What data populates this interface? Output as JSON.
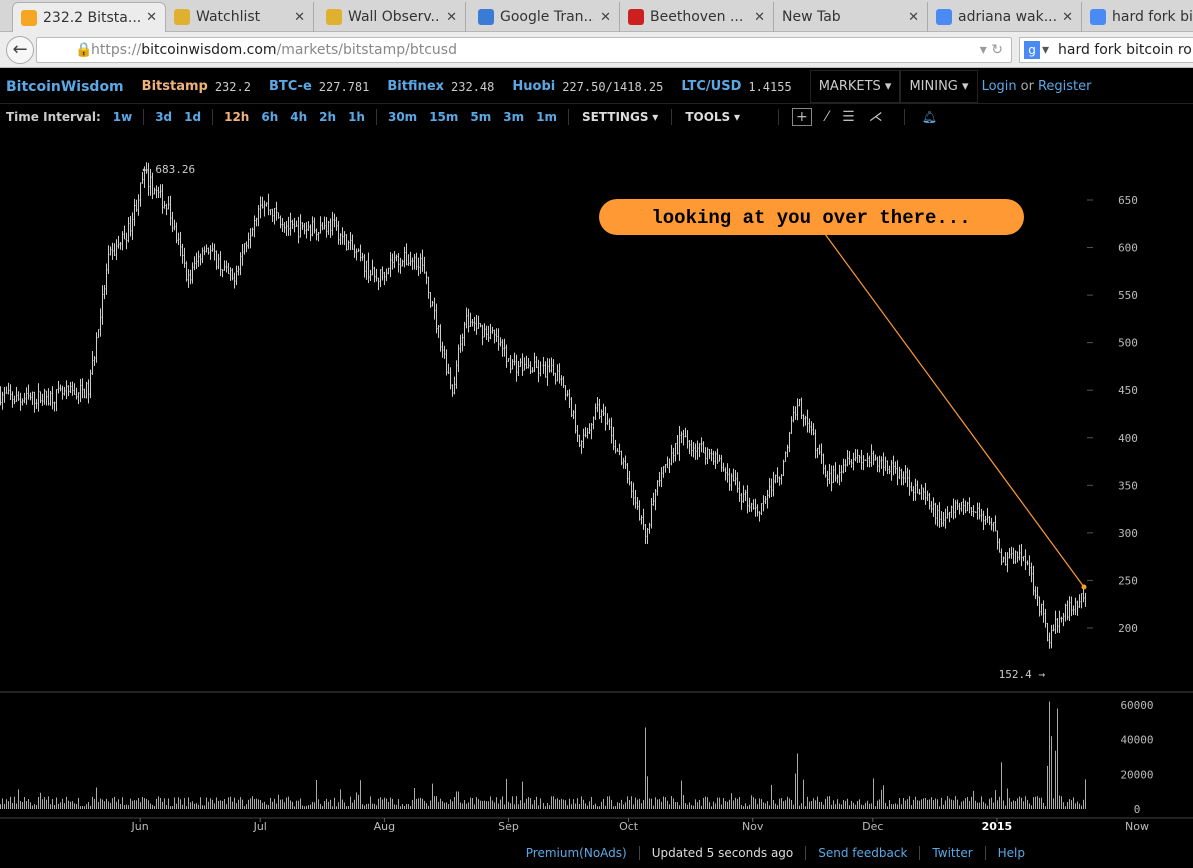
{
  "browser": {
    "tabs": [
      {
        "title": "232.2 Bitsta...",
        "icon": "chart-favicon",
        "color": "#f5a623",
        "active": true
      },
      {
        "title": "Watchlist",
        "icon": "bitcoin-favicon",
        "color": "#e0b030"
      },
      {
        "title": "Wall Observ...",
        "icon": "bitcoin-favicon",
        "color": "#e0b030"
      },
      {
        "title": "Google Tran...",
        "icon": "translate-favicon",
        "color": "#3a7bd5"
      },
      {
        "title": "Beethoven ...",
        "icon": "youtube-favicon",
        "color": "#cc1f1f"
      },
      {
        "title": "New Tab",
        "icon": "",
        "color": ""
      },
      {
        "title": "adriana wak...",
        "icon": "google-favicon",
        "color": "#4a8af4"
      },
      {
        "title": "hard fork bit...",
        "icon": "google-favicon",
        "color": "#4a8af4"
      }
    ],
    "url_prefix": "https://",
    "url_domain": "bitcoinwisdom.com",
    "url_path": "/markets/bitstamp/btcusd",
    "search_value": "hard fork bitcoin rolle"
  },
  "topbar": {
    "brand": "BitcoinWisdom",
    "tickers": [
      {
        "name": "Bitstamp",
        "value": "232.2",
        "highlight": true
      },
      {
        "name": "BTC-e",
        "value": "227.781"
      },
      {
        "name": "Bitfinex",
        "value": "232.48"
      },
      {
        "name": "Huobi",
        "value": "227.50/1418.25"
      },
      {
        "name": "LTC/USD",
        "value": "1.4155"
      }
    ],
    "markets": "MARKETS",
    "mining": "MINING",
    "login": "Login",
    "or": "or",
    "register": "Register"
  },
  "toolbar": {
    "label": "Time Interval:",
    "groups": [
      [
        "1w"
      ],
      [
        "3d",
        "1d"
      ],
      [
        "12h",
        "6h",
        "4h",
        "2h",
        "1h"
      ],
      [
        "30m",
        "15m",
        "5m",
        "3m",
        "1m"
      ]
    ],
    "selected": "12h",
    "settings": "SETTINGS",
    "tools": "TOOLS"
  },
  "chart_data": {
    "type": "candlestick",
    "interval": "12h",
    "price_path": [
      [
        "2014-04-27",
        445
      ],
      [
        "2014-05-02",
        440
      ],
      [
        "2014-05-12",
        445
      ],
      [
        "2014-05-19",
        450
      ],
      [
        "2014-05-21",
        503
      ],
      [
        "2014-05-24",
        587
      ],
      [
        "2014-05-29",
        618
      ],
      [
        "2014-06-02",
        676
      ],
      [
        "2014-06-08",
        640
      ],
      [
        "2014-06-13",
        566
      ],
      [
        "2014-06-17",
        603
      ],
      [
        "2014-06-24",
        566
      ],
      [
        "2014-07-01",
        650
      ],
      [
        "2014-07-09",
        618
      ],
      [
        "2014-07-19",
        624
      ],
      [
        "2014-07-25",
        592
      ],
      [
        "2014-07-30",
        566
      ],
      [
        "2014-08-03",
        587
      ],
      [
        "2014-08-10",
        587
      ],
      [
        "2014-08-15",
        503
      ],
      [
        "2014-08-18",
        450
      ],
      [
        "2014-08-21",
        524
      ],
      [
        "2014-08-28",
        508
      ],
      [
        "2014-09-02",
        477
      ],
      [
        "2014-09-09",
        471
      ],
      [
        "2014-09-14",
        466
      ],
      [
        "2014-09-19",
        392
      ],
      [
        "2014-09-23",
        434
      ],
      [
        "2014-09-30",
        366
      ],
      [
        "2014-10-05",
        298
      ],
      [
        "2014-10-09",
        366
      ],
      [
        "2014-10-14",
        398
      ],
      [
        "2014-10-22",
        382
      ],
      [
        "2014-10-29",
        340
      ],
      [
        "2014-11-02",
        324
      ],
      [
        "2014-11-08",
        366
      ],
      [
        "2014-11-12",
        440
      ],
      [
        "2014-11-20",
        356
      ],
      [
        "2014-11-25",
        382
      ],
      [
        "2014-12-05",
        371
      ],
      [
        "2014-12-11",
        350
      ],
      [
        "2014-12-18",
        314
      ],
      [
        "2014-12-23",
        330
      ],
      [
        "2014-12-31",
        314
      ],
      [
        "2015-01-02",
        272
      ],
      [
        "2015-01-08",
        277
      ],
      [
        "2015-01-14",
        187
      ],
      [
        "2015-01-15",
        198
      ],
      [
        "2015-01-17",
        213
      ],
      [
        "2015-01-23",
        232
      ]
    ],
    "volume_spikes": [
      [
        "2014-10-05",
        47000
      ],
      [
        "2014-11-12",
        32000
      ],
      [
        "2015-01-02",
        27000
      ],
      [
        "2015-01-14",
        62000
      ],
      [
        "2015-01-16",
        58000
      ]
    ],
    "high_label": "683.26",
    "low_label": "152.4",
    "high_date": "2014-06-02",
    "low_date": "2015-01-14",
    "y_ticks": [
      200,
      250,
      300,
      350,
      400,
      450,
      500,
      550,
      600,
      650
    ],
    "y_range": [
      160,
      690
    ],
    "volume_ticks": [
      0,
      20000,
      40000,
      60000
    ],
    "volume_range": [
      0,
      60000
    ],
    "x_ticks": [
      [
        "2014-06-01",
        "Jun"
      ],
      [
        "2014-07-01",
        "Jul"
      ],
      [
        "2014-08-01",
        "Aug"
      ],
      [
        "2014-09-01",
        "Sep"
      ],
      [
        "2014-10-01",
        "Oct"
      ],
      [
        "2014-11-01",
        "Nov"
      ],
      [
        "2014-12-01",
        "Dec"
      ],
      [
        "2015-01-01",
        "2015"
      ]
    ],
    "x_range": [
      "2014-04-27",
      "2015-01-23"
    ],
    "now_label": "Now",
    "annotation": "looking at you over there...",
    "annotation_color": "#ff9933",
    "candle_color": "#cccccc"
  },
  "footer": {
    "premium": "Premium(NoAds)",
    "updated": "Updated 5 seconds ago",
    "feedback": "Send feedback",
    "twitter": "Twitter",
    "help": "Help"
  }
}
